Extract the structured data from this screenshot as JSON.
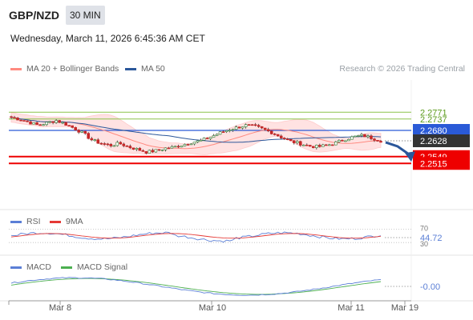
{
  "header": {
    "symbol": "GBP/NZD",
    "timeframe": "30 MIN",
    "datetime": "Wednesday, March 11, 2026 6:45:36 AM CET"
  },
  "legend": {
    "ma20_label": "MA 20 + Bollinger Bands",
    "ma50_label": "MA 50",
    "credit": "Research © 2026 Trading Central"
  },
  "rsi_panel": {
    "label": "RSI",
    "ma_label": "9MA",
    "ticks": [
      "70",
      "44.72",
      "30"
    ]
  },
  "macd_panel": {
    "label": "MACD",
    "signal_label": "MACD Signal",
    "value_label": "-0.00"
  },
  "chart_data": {
    "type": "candlestick",
    "instrument": "GBP/NZD",
    "interval": "30 MIN",
    "price_levels": [
      {
        "label": "2.2771",
        "value": 2.2771,
        "color": "#8bc34a",
        "style": "resistance"
      },
      {
        "label": "2.2737",
        "value": 2.2737,
        "color": "#8bc34a",
        "style": "resistance"
      },
      {
        "label": "2.2680",
        "value": 2.268,
        "color": "#2a5ad7",
        "style": "pivot"
      },
      {
        "label": "2.2628",
        "value": 2.2628,
        "color": "#333333",
        "style": "current"
      },
      {
        "label": "2.2549",
        "value": 2.2549,
        "color": "#ee0000",
        "style": "support"
      },
      {
        "label": "2.2515",
        "value": 2.2515,
        "color": "#ee0000",
        "style": "support"
      }
    ],
    "x_tick_labels": [
      "Mar 8",
      "Mar 10",
      "Mar 11",
      "Mar 19"
    ],
    "close_path": [
      2.2745,
      2.2735,
      2.272,
      2.2705,
      2.2718,
      2.273,
      2.2712,
      2.269,
      2.2665,
      2.263,
      2.2615,
      2.2605,
      2.2615,
      2.2598,
      2.2585,
      2.2572,
      2.2578,
      2.259,
      2.2596,
      2.2608,
      2.262,
      2.2628,
      2.2645,
      2.2665,
      2.2682,
      2.2694,
      2.2705,
      2.27,
      2.2685,
      2.2668,
      2.2645,
      2.2625,
      2.2615,
      2.2602,
      2.2598,
      2.2605,
      2.2618,
      2.2635,
      2.2648,
      2.2655,
      2.2642,
      2.2628
    ],
    "forecast_arrow": {
      "direction": "down",
      "target": 2.2515
    },
    "colors": {
      "up": "#2e7d32",
      "down": "#c62828",
      "bollinger_fill": "#ffdfdf",
      "ma20": "#ff8a80",
      "ma50": "#2b579a"
    }
  }
}
